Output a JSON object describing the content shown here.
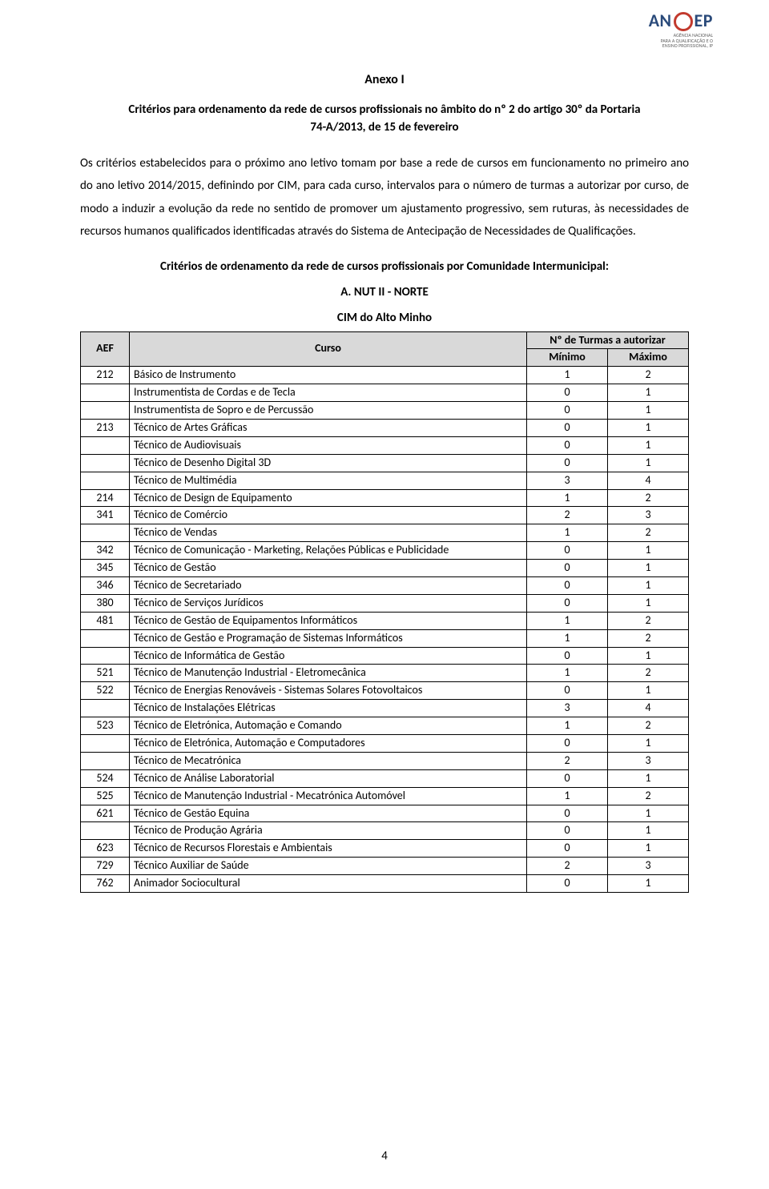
{
  "logo": {
    "brand_prefix": "AN",
    "brand_suffix": "EP",
    "sub1": "AGÊNCIA NACIONAL",
    "sub2": "PARA A QUALIFICAÇÃO E O",
    "sub3": "ENSINO PROFISSIONAL, IP"
  },
  "headings": {
    "anexo": "Anexo I",
    "criterios_l1": "Critérios para ordenamento da rede de cursos profissionais no âmbito do nº 2 do artigo 30º da Portaria",
    "criterios_l2": "74-A/2013, de 15 de fevereiro",
    "body": "Os critérios estabelecidos para o próximo ano letivo tomam por base a rede de cursos em funcionamento no primeiro ano do ano letivo 2014/2015, definindo por CIM, para cada curso, intervalos para o número de turmas a autorizar por curso, de modo a induzir a evolução da rede no sentido de promover um ajustamento progressivo, sem ruturas, às necessidades de recursos humanos qualificados identificadas através do Sistema de Antecipação de Necessidades de Qualificações.",
    "sub_bold": "Critérios de ordenamento da rede de cursos profissionais por Comunidade Intermunicipal:",
    "nut": "A. NUT II - NORTE",
    "cim": "CIM do Alto Minho"
  },
  "table": {
    "headers": {
      "aef": "AEF",
      "curso": "Curso",
      "turmas": "Nº de Turmas a autorizar",
      "min": "Mínimo",
      "max": "Máximo"
    },
    "header_bg": "#d9d9d9",
    "rows": [
      {
        "aef": "212",
        "curso": "Básico de Instrumento",
        "min": "1",
        "max": "2"
      },
      {
        "aef": "",
        "curso": "Instrumentista de Cordas e de Tecla",
        "min": "0",
        "max": "1"
      },
      {
        "aef": "",
        "curso": "Instrumentista de Sopro e de Percussão",
        "min": "0",
        "max": "1"
      },
      {
        "aef": "213",
        "curso": "Técnico de Artes Gráficas",
        "min": "0",
        "max": "1"
      },
      {
        "aef": "",
        "curso": "Técnico de Audiovisuais",
        "min": "0",
        "max": "1"
      },
      {
        "aef": "",
        "curso": "Técnico de Desenho Digital 3D",
        "min": "0",
        "max": "1"
      },
      {
        "aef": "",
        "curso": "Técnico de Multimédia",
        "min": "3",
        "max": "4"
      },
      {
        "aef": "214",
        "curso": "Técnico de Design de Equipamento",
        "min": "1",
        "max": "2"
      },
      {
        "aef": "341",
        "curso": "Técnico de Comércio",
        "min": "2",
        "max": "3"
      },
      {
        "aef": "",
        "curso": "Técnico de Vendas",
        "min": "1",
        "max": "2"
      },
      {
        "aef": "342",
        "curso": "Técnico de Comunicação - Marketing, Relações Públicas e Publicidade",
        "min": "0",
        "max": "1"
      },
      {
        "aef": "345",
        "curso": "Técnico de Gestão",
        "min": "0",
        "max": "1"
      },
      {
        "aef": "346",
        "curso": "Técnico de Secretariado",
        "min": "0",
        "max": "1"
      },
      {
        "aef": "380",
        "curso": "Técnico de Serviços Jurídicos",
        "min": "0",
        "max": "1"
      },
      {
        "aef": "481",
        "curso": "Técnico de Gestão de Equipamentos Informáticos",
        "min": "1",
        "max": "2"
      },
      {
        "aef": "",
        "curso": "Técnico de Gestão e Programação de Sistemas Informáticos",
        "min": "1",
        "max": "2"
      },
      {
        "aef": "",
        "curso": "Técnico de Informática de Gestão",
        "min": "0",
        "max": "1"
      },
      {
        "aef": "521",
        "curso": "Técnico de Manutenção Industrial - Eletromecânica",
        "min": "1",
        "max": "2"
      },
      {
        "aef": "522",
        "curso": "Técnico de Energias Renováveis - Sistemas Solares Fotovoltaicos",
        "min": "0",
        "max": "1"
      },
      {
        "aef": "",
        "curso": "Técnico de Instalações Elétricas",
        "min": "3",
        "max": "4"
      },
      {
        "aef": "523",
        "curso": "Técnico de Eletrónica, Automação e Comando",
        "min": "1",
        "max": "2"
      },
      {
        "aef": "",
        "curso": "Técnico de Eletrónica, Automação e Computadores",
        "min": "0",
        "max": "1"
      },
      {
        "aef": "",
        "curso": "Técnico de Mecatrónica",
        "min": "2",
        "max": "3"
      },
      {
        "aef": "524",
        "curso": "Técnico de Análise Laboratorial",
        "min": "0",
        "max": "1"
      },
      {
        "aef": "525",
        "curso": "Técnico de Manutenção Industrial - Mecatrónica Automóvel",
        "min": "1",
        "max": "2"
      },
      {
        "aef": "621",
        "curso": "Técnico de Gestão Equina",
        "min": "0",
        "max": "1"
      },
      {
        "aef": "",
        "curso": "Técnico de Produção Agrária",
        "min": "0",
        "max": "1"
      },
      {
        "aef": "623",
        "curso": "Técnico de Recursos Florestais e Ambientais",
        "min": "0",
        "max": "1"
      },
      {
        "aef": "729",
        "curso": "Técnico Auxiliar de Saúde",
        "min": "2",
        "max": "3"
      },
      {
        "aef": "762",
        "curso": "Animador Sociocultural",
        "min": "0",
        "max": "1"
      }
    ]
  },
  "page_num": "4"
}
